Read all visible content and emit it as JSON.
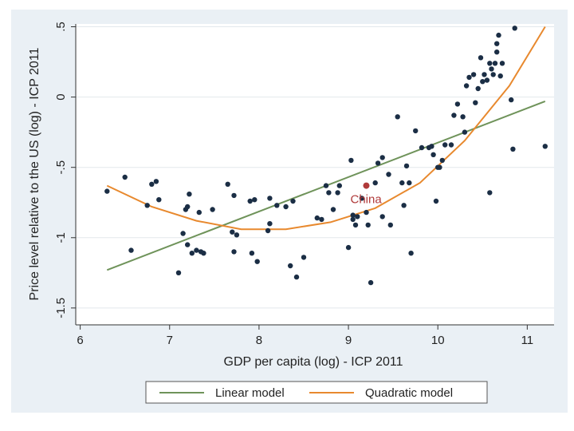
{
  "chart_data": {
    "type": "scatter",
    "xlabel": "GDP per capita (log) - ICP 2011",
    "ylabel": "Price level relative to the US (log) - ICP 2011",
    "xlim": [
      5.95,
      11.3
    ],
    "ylim": [
      -1.62,
      0.52
    ],
    "x_ticks": [
      6,
      7,
      8,
      9,
      10,
      11
    ],
    "y_ticks": [
      0.5,
      0,
      -0.5,
      -1,
      -1.5
    ],
    "x_tick_labels": [
      "6",
      "7",
      "8",
      "9",
      "10",
      "11"
    ],
    "y_tick_labels": [
      ".5",
      "0",
      "-.5",
      "-1",
      "-1.5"
    ],
    "grid": "horizontal",
    "legend_position": "bottom",
    "colors": {
      "points": "#1b2e45",
      "linear": "#6f935a",
      "quadratic": "#e8892e",
      "china": "#b03a3a",
      "plot_bg": "#ffffff",
      "outer_bg": "#eaf0f5"
    },
    "series": [
      {
        "name": "Linear model",
        "type": "line",
        "color": "#6f935a",
        "points": [
          [
            6.3,
            -1.23
          ],
          [
            11.2,
            -0.03
          ]
        ]
      },
      {
        "name": "Quadratic model",
        "type": "curve",
        "color": "#e8892e",
        "points": [
          [
            6.3,
            -0.63
          ],
          [
            6.8,
            -0.78
          ],
          [
            7.3,
            -0.88
          ],
          [
            7.8,
            -0.94
          ],
          [
            8.3,
            -0.94
          ],
          [
            8.8,
            -0.89
          ],
          [
            9.3,
            -0.79
          ],
          [
            9.8,
            -0.61
          ],
          [
            10.3,
            -0.31
          ],
          [
            10.8,
            0.08
          ],
          [
            11.2,
            0.5
          ]
        ]
      },
      {
        "type": "scatter",
        "points": [
          [
            6.3,
            -0.67
          ],
          [
            6.5,
            -0.57
          ],
          [
            6.57,
            -1.09
          ],
          [
            6.75,
            -0.77
          ],
          [
            6.8,
            -0.62
          ],
          [
            6.85,
            -0.6
          ],
          [
            6.88,
            -0.73
          ],
          [
            7.1,
            -1.25
          ],
          [
            7.15,
            -0.97
          ],
          [
            7.18,
            -0.8
          ],
          [
            7.2,
            -1.05
          ],
          [
            7.2,
            -0.78
          ],
          [
            7.22,
            -0.69
          ],
          [
            7.25,
            -1.11
          ],
          [
            7.3,
            -1.09
          ],
          [
            7.33,
            -0.82
          ],
          [
            7.35,
            -1.1
          ],
          [
            7.38,
            -1.11
          ],
          [
            7.48,
            -0.8
          ],
          [
            7.65,
            -0.62
          ],
          [
            7.7,
            -0.96
          ],
          [
            7.72,
            -1.1
          ],
          [
            7.75,
            -0.98
          ],
          [
            7.72,
            -0.7
          ],
          [
            7.9,
            -0.74
          ],
          [
            7.95,
            -0.73
          ],
          [
            7.92,
            -1.11
          ],
          [
            7.98,
            -1.17
          ],
          [
            8.1,
            -0.95
          ],
          [
            8.12,
            -0.72
          ],
          [
            8.12,
            -0.9
          ],
          [
            8.2,
            -0.77
          ],
          [
            8.3,
            -0.78
          ],
          [
            8.35,
            -1.2
          ],
          [
            8.38,
            -0.74
          ],
          [
            8.42,
            -1.28
          ],
          [
            8.5,
            -1.14
          ],
          [
            8.65,
            -0.86
          ],
          [
            8.7,
            -0.87
          ],
          [
            8.75,
            -0.63
          ],
          [
            8.78,
            -0.68
          ],
          [
            8.83,
            -0.8
          ],
          [
            8.88,
            -0.68
          ],
          [
            8.9,
            -0.63
          ],
          [
            9.0,
            -1.07
          ],
          [
            9.03,
            -0.45
          ],
          [
            9.05,
            -0.84
          ],
          [
            9.05,
            -0.87
          ],
          [
            9.08,
            -0.91
          ],
          [
            9.1,
            -0.85
          ],
          [
            9.15,
            -0.72
          ],
          [
            9.2,
            -0.82
          ],
          [
            9.22,
            -0.91
          ],
          [
            9.25,
            -1.32
          ],
          [
            9.3,
            -0.61
          ],
          [
            9.33,
            -0.47
          ],
          [
            9.38,
            -0.43
          ],
          [
            9.38,
            -0.85
          ],
          [
            9.45,
            -0.55
          ],
          [
            9.47,
            -0.91
          ],
          [
            9.55,
            -0.14
          ],
          [
            9.6,
            -0.61
          ],
          [
            9.62,
            -0.77
          ],
          [
            9.65,
            -0.49
          ],
          [
            9.68,
            -0.61
          ],
          [
            9.7,
            -1.11
          ],
          [
            9.75,
            -0.24
          ],
          [
            9.82,
            -0.36
          ],
          [
            9.9,
            -0.36
          ],
          [
            9.93,
            -0.35
          ],
          [
            9.95,
            -0.41
          ],
          [
            9.98,
            -0.74
          ],
          [
            10.0,
            -0.5
          ],
          [
            10.02,
            -0.5
          ],
          [
            10.05,
            -0.45
          ],
          [
            10.08,
            -0.34
          ],
          [
            10.15,
            -0.34
          ],
          [
            10.18,
            -0.13
          ],
          [
            10.22,
            -0.05
          ],
          [
            10.28,
            -0.14
          ],
          [
            10.3,
            -0.25
          ],
          [
            10.32,
            0.08
          ],
          [
            10.35,
            0.14
          ],
          [
            10.4,
            0.16
          ],
          [
            10.42,
            -0.04
          ],
          [
            10.45,
            0.06
          ],
          [
            10.48,
            0.28
          ],
          [
            10.5,
            0.11
          ],
          [
            10.52,
            0.16
          ],
          [
            10.55,
            0.12
          ],
          [
            10.58,
            0.24
          ],
          [
            10.6,
            0.2
          ],
          [
            10.62,
            0.16
          ],
          [
            10.64,
            0.24
          ],
          [
            10.66,
            0.32
          ],
          [
            10.66,
            0.38
          ],
          [
            10.68,
            0.44
          ],
          [
            10.7,
            0.15
          ],
          [
            10.72,
            0.24
          ],
          [
            10.58,
            -0.68
          ],
          [
            10.82,
            -0.02
          ],
          [
            10.84,
            -0.37
          ],
          [
            10.86,
            0.49
          ],
          [
            11.2,
            -0.35
          ]
        ]
      }
    ],
    "annotations": [
      {
        "text": "China",
        "x": 9.2,
        "y": -0.63
      }
    ],
    "legend": [
      "Linear model",
      "Quadratic model"
    ]
  }
}
